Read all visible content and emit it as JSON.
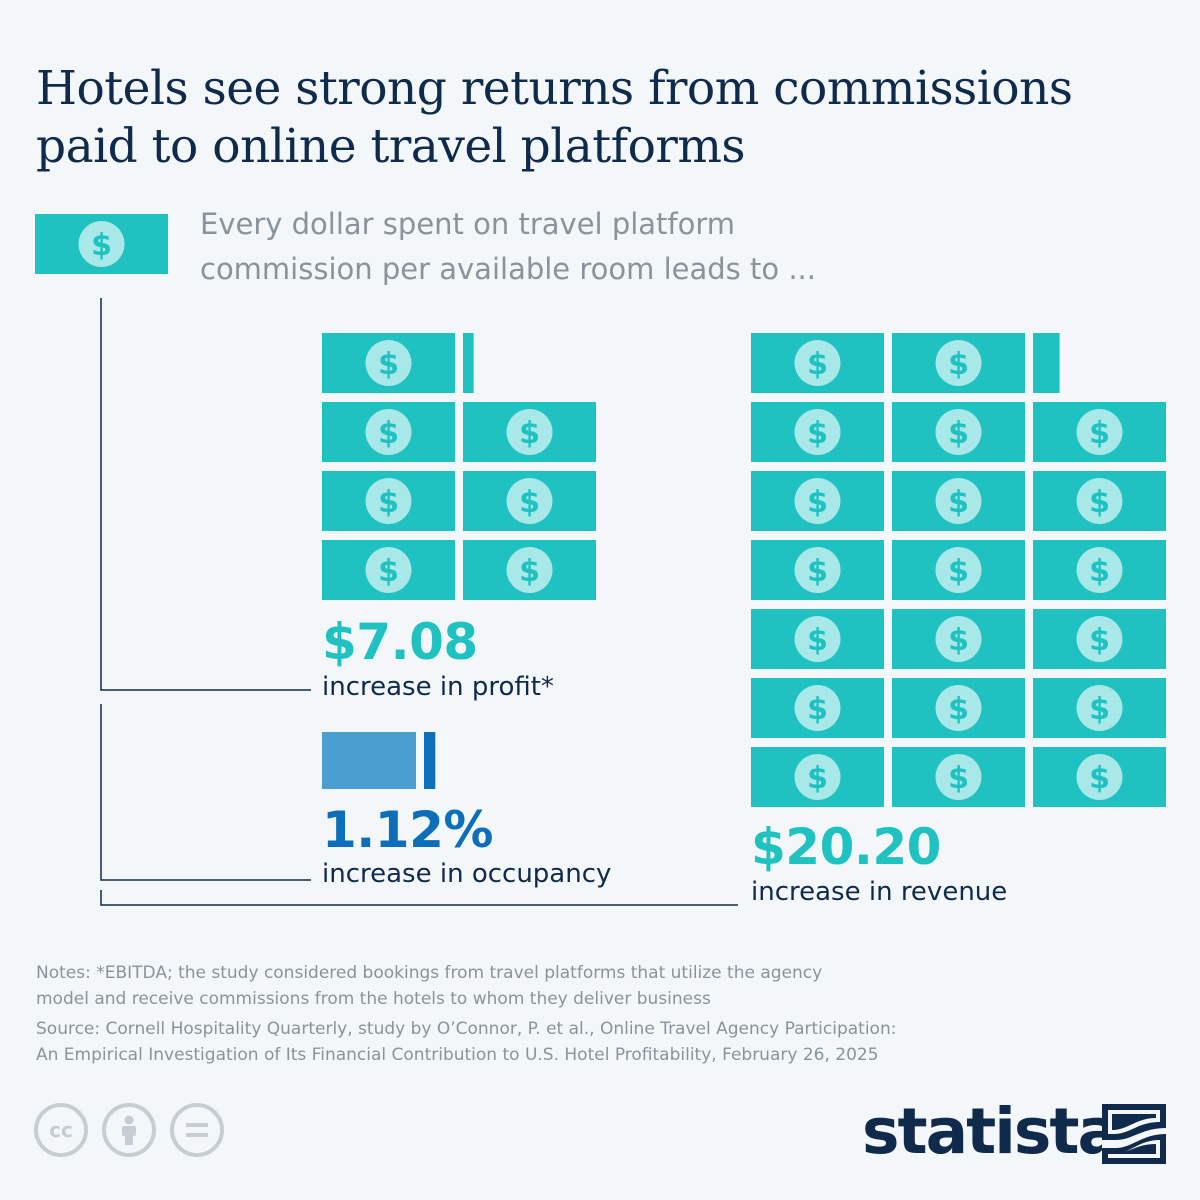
{
  "title": "Hotels see strong returns from commissions paid to online travel platforms",
  "subtitle_line1": "Every dollar spent on travel platform",
  "subtitle_line2": "commission per available room leads to ...",
  "chart_data": {
    "type": "pictogram",
    "unit": "$1 per bill",
    "base": 1,
    "metrics": [
      {
        "value": 7.08,
        "display": "$7.08",
        "label": "increase in profit*",
        "color": "#1fc1c1"
      },
      {
        "value": 1.12,
        "display": "1.12%",
        "label": "increase in occupancy",
        "color": "#0d6eb9"
      },
      {
        "value": 20.2,
        "display": "$20.20",
        "label": "increase in revenue",
        "color": "#1fc1c1"
      }
    ]
  },
  "notes_line1": "Notes: *EBITDA; the study considered bookings from travel platforms that utilize the agency",
  "notes_line2": "model and receive commissions from the hotels to whom they deliver business",
  "source_line1": "Source: Cornell Hospitality Quarterly, study by O’Connor, P. et al., Online Travel Agency Participation:",
  "source_line2": "An Empirical Investigation of Its Financial Contribution to U.S. Hotel Profitability, February 26, 2025",
  "license_icons": [
    "cc-icon",
    "attribution-icon",
    "no-derivatives-icon"
  ],
  "brand": "statista",
  "colors": {
    "teal": "#1fc1c1",
    "coin": "#a9e8e8",
    "blue": "#0d6eb9",
    "light_blue": "#4a9fd0",
    "navy": "#0f2a4a"
  }
}
